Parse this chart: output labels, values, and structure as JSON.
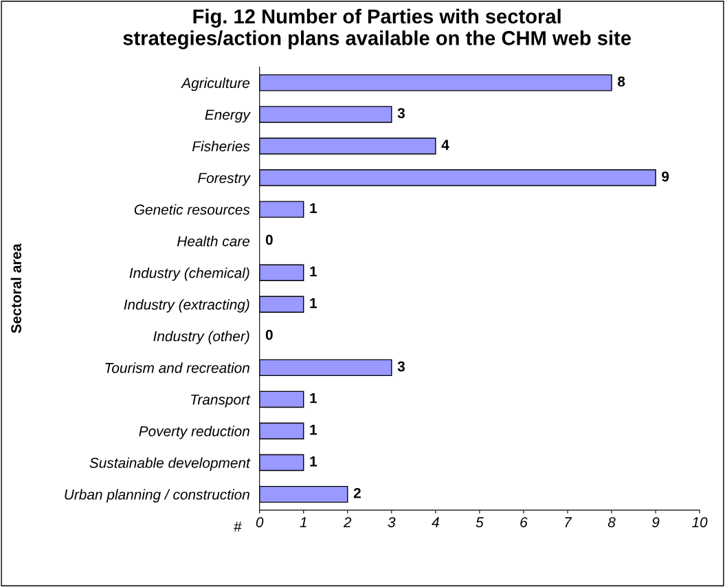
{
  "chart_data": {
    "type": "bar",
    "orientation": "horizontal",
    "title": "Fig. 12 Number of Parties with sectoral\nstrategies/action plans available on the CHM web site",
    "xlabel": "#",
    "ylabel": "Sectoral area",
    "categories": [
      "Agriculture",
      "Energy",
      "Fisheries",
      "Forestry",
      "Genetic resources",
      "Health care",
      "Industry (chemical)",
      "Industry (extracting)",
      "Industry (other)",
      "Tourism and recreation",
      "Transport",
      "Poverty reduction",
      "Sustainable development",
      "Urban planning / construction"
    ],
    "values": [
      8,
      3,
      4,
      9,
      1,
      0,
      1,
      1,
      0,
      3,
      1,
      1,
      1,
      2
    ],
    "color": "#9999ff",
    "xlim": [
      0,
      10
    ],
    "xticks": [
      0,
      1,
      2,
      3,
      4,
      5,
      6,
      7,
      8,
      9,
      10
    ],
    "data_labels": true,
    "grid": false,
    "legend": false
  }
}
